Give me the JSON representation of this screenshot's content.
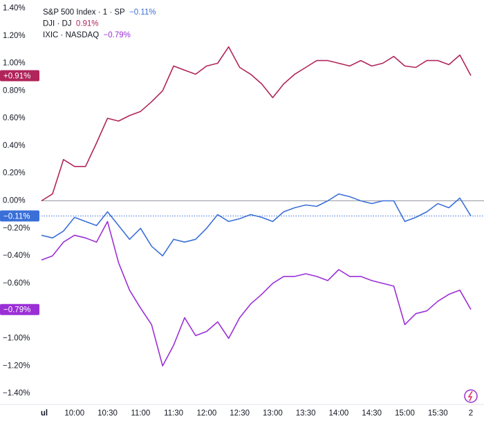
{
  "chart_data": {
    "type": "line",
    "x": [
      "09:30",
      "09:40",
      "09:50",
      "10:00",
      "10:10",
      "10:20",
      "10:30",
      "10:40",
      "10:50",
      "11:00",
      "11:10",
      "11:20",
      "11:30",
      "11:40",
      "11:50",
      "12:00",
      "12:10",
      "12:20",
      "12:30",
      "12:40",
      "12:50",
      "13:00",
      "13:10",
      "13:20",
      "13:30",
      "13:40",
      "13:50",
      "14:00",
      "14:10",
      "14:20",
      "14:30",
      "14:40",
      "14:50",
      "15:00",
      "15:10",
      "15:20",
      "15:30",
      "15:40",
      "15:50",
      "16:00"
    ],
    "xticks": [
      {
        "value": "09:30",
        "label": "ul"
      },
      "10:00",
      "10:30",
      "11:00",
      "11:30",
      "12:00",
      "12:30",
      "13:00",
      "13:30",
      "14:00",
      "14:30",
      "15:00",
      "15:30",
      {
        "value": "16:00",
        "label": "2"
      }
    ],
    "ylim": [
      -1.48,
      1.46
    ],
    "yticks": [
      {
        "value": 1.4,
        "label": "1.40%"
      },
      {
        "value": 1.2,
        "label": "1.20%"
      },
      {
        "value": 1.0,
        "label": "1.00%"
      },
      {
        "value": 0.8,
        "label": "0.80%"
      },
      {
        "value": 0.6,
        "label": "0.60%"
      },
      {
        "value": 0.4,
        "label": "0.40%"
      },
      {
        "value": 0.2,
        "label": "0.20%"
      },
      {
        "value": 0,
        "label": "0.00%"
      },
      {
        "value": -0.2,
        "label": "−0.20%"
      },
      {
        "value": -0.4,
        "label": "−0.40%"
      },
      {
        "value": -0.6,
        "label": "−0.60%"
      },
      {
        "value": -0.8,
        "label": "−0.80%"
      },
      {
        "value": -1.0,
        "label": "−1.00%"
      },
      {
        "value": -1.2,
        "label": "−1.20%"
      },
      {
        "value": -1.4,
        "label": "−1.40%"
      }
    ],
    "series": [
      {
        "name": "S&P 500 Index · 1 · SP",
        "color": "#3a6fd8",
        "last_label": "−0.11%",
        "badge": "−0.11%",
        "values": [
          -0.25,
          -0.27,
          -0.22,
          -0.12,
          -0.15,
          -0.18,
          -0.08,
          -0.18,
          -0.28,
          -0.2,
          -0.33,
          -0.4,
          -0.28,
          -0.3,
          -0.28,
          -0.2,
          -0.1,
          -0.15,
          -0.13,
          -0.1,
          -0.12,
          -0.15,
          -0.08,
          -0.05,
          -0.03,
          -0.04,
          0.0,
          0.05,
          0.03,
          0.0,
          -0.02,
          0.0,
          0.0,
          -0.15,
          -0.12,
          -0.08,
          -0.02,
          -0.05,
          0.02,
          -0.11
        ]
      },
      {
        "name": "DJI · DJ",
        "color": "#b0245a",
        "last_label": "0.91%",
        "badge": "+0.91%",
        "values": [
          0.0,
          0.05,
          0.3,
          0.25,
          0.25,
          0.42,
          0.6,
          0.58,
          0.62,
          0.65,
          0.72,
          0.8,
          0.98,
          0.95,
          0.92,
          0.98,
          1.0,
          1.12,
          0.97,
          0.92,
          0.85,
          0.75,
          0.85,
          0.92,
          0.97,
          1.02,
          1.02,
          1.0,
          0.98,
          1.02,
          0.98,
          1.0,
          1.05,
          0.98,
          0.97,
          1.02,
          1.02,
          0.99,
          1.06,
          0.91
        ]
      },
      {
        "name": "IXIC · NASDAQ",
        "color": "#9b2fd6",
        "last_label": "−0.79%",
        "badge": "−0.79%",
        "values": [
          -0.43,
          -0.4,
          -0.3,
          -0.25,
          -0.27,
          -0.3,
          -0.15,
          -0.45,
          -0.65,
          -0.78,
          -0.9,
          -1.2,
          -1.05,
          -0.85,
          -0.98,
          -0.95,
          -0.88,
          -1.0,
          -0.85,
          -0.75,
          -0.68,
          -0.6,
          -0.55,
          -0.55,
          -0.53,
          -0.55,
          -0.58,
          -0.5,
          -0.55,
          -0.55,
          -0.58,
          -0.6,
          -0.62,
          -0.9,
          -0.82,
          -0.8,
          -0.73,
          -0.68,
          -0.65,
          -0.79
        ]
      }
    ]
  }
}
